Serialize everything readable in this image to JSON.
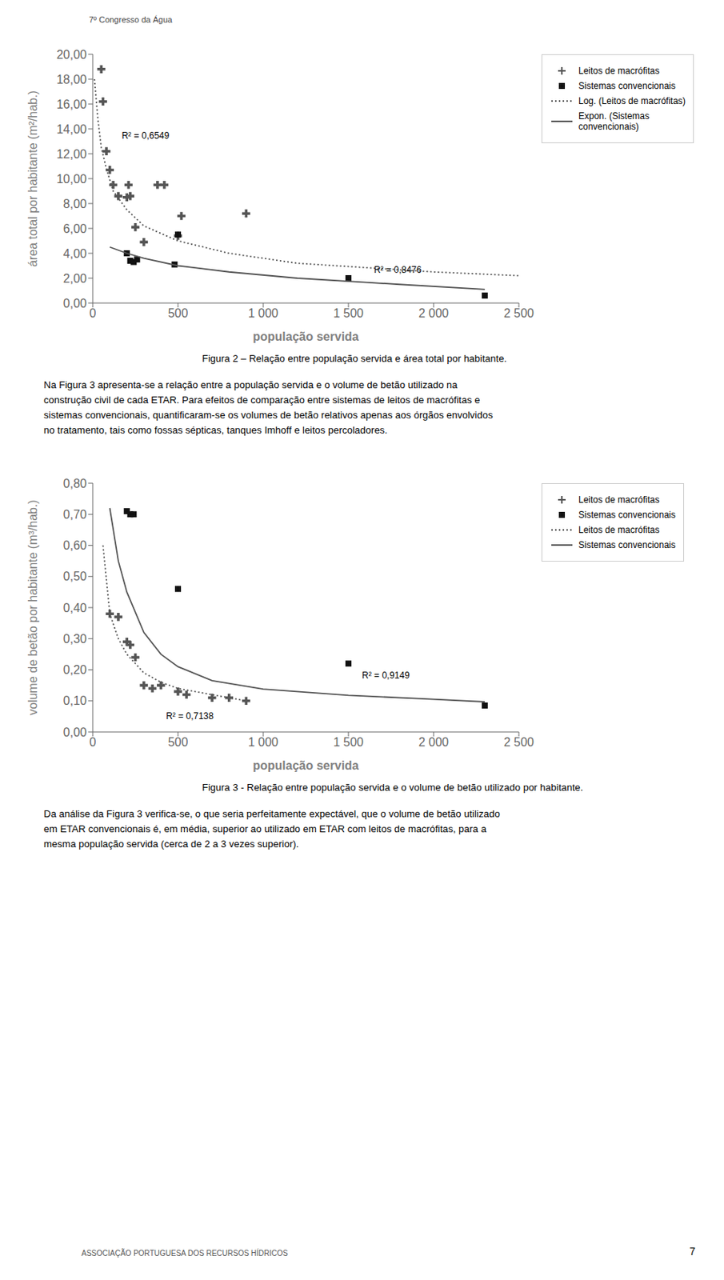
{
  "header": "7º Congresso da Água",
  "chart_data": [
    {
      "type": "scatter",
      "caption": "Figura 2 – Relação entre população servida e área total por habitante.",
      "paragraph": [
        "Na Figura 3 apresenta-se a relação entre a população servida e o volume de betão utilizado na",
        "construção civil de cada ETAR. Para efeitos de comparação entre sistemas de leitos de macrófitas e",
        "sistemas convencionais, quantificaram-se os volumes de betão relativos apenas aos órgãos envolvidos",
        "no tratamento, tais como fossas sépticas, tanques Imhoff e leitos percoladores."
      ],
      "xlabel": "população servida",
      "ylabel": "área total por habitante (m²/hab.)",
      "xlim": [
        0,
        2500
      ],
      "ylim": [
        0,
        20
      ],
      "xticks": [
        0,
        500,
        {
          "value": 1000,
          "label": "1 000"
        },
        {
          "value": 1500,
          "label": "1 500"
        },
        {
          "value": 2000,
          "label": "2 000"
        },
        {
          "value": 2500,
          "label": "2 500"
        }
      ],
      "yticks": [
        {
          "value": 0,
          "label": "0,00"
        },
        {
          "value": 2,
          "label": "2,00"
        },
        {
          "value": 4,
          "label": "4,00"
        },
        {
          "value": 6,
          "label": "6,00"
        },
        {
          "value": 8,
          "label": "8,00"
        },
        {
          "value": 10,
          "label": "10,00"
        },
        {
          "value": 12,
          "label": "12,00"
        },
        {
          "value": 14,
          "label": "14,00"
        },
        {
          "value": 16,
          "label": "16,00"
        },
        {
          "value": 18,
          "label": "18,00"
        },
        {
          "value": 20,
          "label": "20,00"
        }
      ],
      "grid": false,
      "legend": "right",
      "series": [
        {
          "name": "Leitos de macrófitas",
          "type": "scatter",
          "marker": "plus",
          "color": "#555555",
          "x": [
            50,
            60,
            80,
            100,
            120,
            150,
            200,
            210,
            220,
            250,
            300,
            380,
            420,
            500,
            520,
            900
          ],
          "values": [
            18.8,
            16.2,
            12.2,
            10.7,
            9.5,
            8.6,
            8.5,
            9.5,
            8.6,
            6.1,
            4.9,
            9.5,
            9.5,
            5.4,
            7.0,
            7.2
          ]
        },
        {
          "name": "Sistemas convencionais",
          "type": "scatter",
          "marker": "square",
          "color": "#111111",
          "x": [
            200,
            220,
            240,
            260,
            480,
            500,
            1500,
            2300
          ],
          "values": [
            4.0,
            3.4,
            3.3,
            3.5,
            3.1,
            5.5,
            2.0,
            0.6
          ]
        },
        {
          "name": "Log. (Leitos de macrófitas)",
          "type": "line",
          "line_style": "dotted",
          "color": "#555555",
          "x": [
            10,
            30,
            50,
            80,
            120,
            200,
            300,
            500,
            800,
            1200,
            2000,
            2500
          ],
          "values": [
            18.0,
            14.8,
            12.5,
            10.8,
            9.0,
            7.5,
            6.2,
            5.0,
            4.0,
            3.2,
            2.5,
            2.2
          ]
        },
        {
          "name": "Expon. (Sistemas\nconvencionais)",
          "type": "line",
          "line_style": "solid",
          "color": "#555555",
          "x": [
            100,
            200,
            300,
            500,
            800,
            1200,
            1800,
            2300
          ],
          "values": [
            4.5,
            4.0,
            3.6,
            3.0,
            2.5,
            2.0,
            1.5,
            1.1
          ]
        }
      ],
      "annotations": [
        {
          "text": "R² = 0,6549",
          "x": 170,
          "y": 13.5
        },
        {
          "text": "R² = 0,8476",
          "x": 1650,
          "y": 2.7
        }
      ]
    },
    {
      "type": "scatter",
      "caption": "Figura 3 - Relação entre população servida e o volume de betão utilizado por habitante.",
      "paragraph": [
        "Da análise da Figura 3 verifica-se, o que seria perfeitamente expectável, que o volume de betão utilizado",
        "em ETAR convencionais é, em média, superior ao utilizado em ETAR com leitos de macrófitas, para a",
        "mesma população servida (cerca de 2 a 3 vezes superior)."
      ],
      "xlabel": "população servida",
      "ylabel": "volume de betão por habitante (m³/hab.)",
      "xlim": [
        0,
        2500
      ],
      "ylim": [
        0,
        0.8
      ],
      "xticks": [
        0,
        500,
        {
          "value": 1000,
          "label": "1 000"
        },
        {
          "value": 1500,
          "label": "1 500"
        },
        {
          "value": 2000,
          "label": "2 000"
        },
        {
          "value": 2500,
          "label": "2 500"
        }
      ],
      "yticks": [
        {
          "value": 0.0,
          "label": "0,00"
        },
        {
          "value": 0.1,
          "label": "0,10"
        },
        {
          "value": 0.2,
          "label": "0,20"
        },
        {
          "value": 0.3,
          "label": "0,30"
        },
        {
          "value": 0.4,
          "label": "0,40"
        },
        {
          "value": 0.5,
          "label": "0,50"
        },
        {
          "value": 0.6,
          "label": "0,60"
        },
        {
          "value": 0.7,
          "label": "0,70"
        },
        {
          "value": 0.8,
          "label": "0,80"
        }
      ],
      "grid": false,
      "legend": "right",
      "series": [
        {
          "name": "Leitos de macrófitas",
          "type": "scatter",
          "marker": "plus",
          "color": "#555555",
          "x": [
            100,
            150,
            200,
            220,
            250,
            300,
            350,
            400,
            500,
            550,
            700,
            800,
            900
          ],
          "values": [
            0.38,
            0.37,
            0.29,
            0.28,
            0.24,
            0.15,
            0.14,
            0.15,
            0.13,
            0.12,
            0.11,
            0.11,
            0.1
          ]
        },
        {
          "name": "Sistemas convencionais",
          "type": "scatter",
          "marker": "square",
          "color": "#111111",
          "x": [
            200,
            220,
            240,
            500,
            1500,
            2300
          ],
          "values": [
            0.71,
            0.7,
            0.7,
            0.46,
            0.22,
            0.085
          ]
        },
        {
          "name": "Leitos de macrófitas",
          "type": "line",
          "line_style": "dotted",
          "color": "#555555",
          "x": [
            60,
            100,
            150,
            200,
            300,
            400,
            500,
            700,
            900
          ],
          "values": [
            0.6,
            0.38,
            0.3,
            0.25,
            0.19,
            0.16,
            0.14,
            0.12,
            0.1
          ]
        },
        {
          "name": "Sistemas convencionais",
          "type": "line",
          "line_style": "solid",
          "color": "#555555",
          "x": [
            100,
            150,
            200,
            300,
            400,
            500,
            700,
            1000,
            1500,
            2000,
            2300
          ],
          "values": [
            0.72,
            0.55,
            0.45,
            0.32,
            0.25,
            0.21,
            0.165,
            0.138,
            0.118,
            0.105,
            0.097
          ]
        }
      ],
      "annotations": [
        {
          "text": "R² = 0,7138",
          "x": 430,
          "y": 0.052
        },
        {
          "text": "R² = 0,9149",
          "x": 1580,
          "y": 0.183
        }
      ]
    }
  ],
  "footer": "ASSOCIAÇÃO PORTUGUESA DOS RECURSOS HÍDRICOS",
  "page_number": "7"
}
